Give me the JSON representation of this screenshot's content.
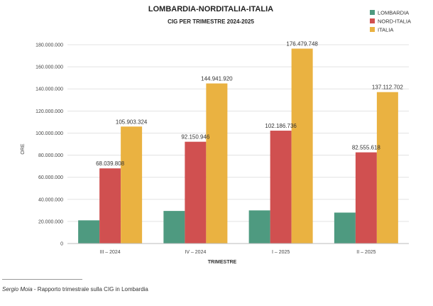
{
  "chart_data": {
    "type": "bar",
    "title": "LOMBARDIA-NORDITALIA-ITALIA",
    "subtitle": "CIG PER TRIMESTRE 2024-2025",
    "xlabel": "TRIMESTRE",
    "ylabel": "ORE",
    "ylim": [
      0,
      180000000
    ],
    "yticks": [
      "0",
      "20.000.000",
      "40.000.000",
      "60.000.000",
      "80.000.000",
      "100.000.000",
      "120.000.000",
      "140.000.000",
      "160.000.000",
      "180.000.000"
    ],
    "categories": [
      "III – 2024",
      "IV – 2024",
      "I – 2025",
      "II – 2025"
    ],
    "series": [
      {
        "name": "LOMBARDIA",
        "color": "#4e9a80",
        "values": [
          21000000,
          29500000,
          30000000,
          28000000
        ],
        "labels": [
          "",
          "",
          "",
          ""
        ]
      },
      {
        "name": "NORD-ITALIA",
        "color": "#d05050",
        "values": [
          68039808,
          92150946,
          102186736,
          82555618
        ],
        "labels": [
          "68.039.808",
          "92.150.946",
          "102.186.736",
          "82.555.618"
        ]
      },
      {
        "name": "ITALIA",
        "color": "#eab241",
        "values": [
          105903324,
          144941920,
          176479748,
          137112702
        ],
        "labels": [
          "105.903.324",
          "144.941.920",
          "176.479.748",
          "137.112.702"
        ]
      }
    ],
    "grid": true,
    "legend_position": "top-right"
  },
  "source": {
    "author": "Sergio Moia",
    "text": " - Rapporto trimestrale sulla CIG in Lombardia"
  }
}
